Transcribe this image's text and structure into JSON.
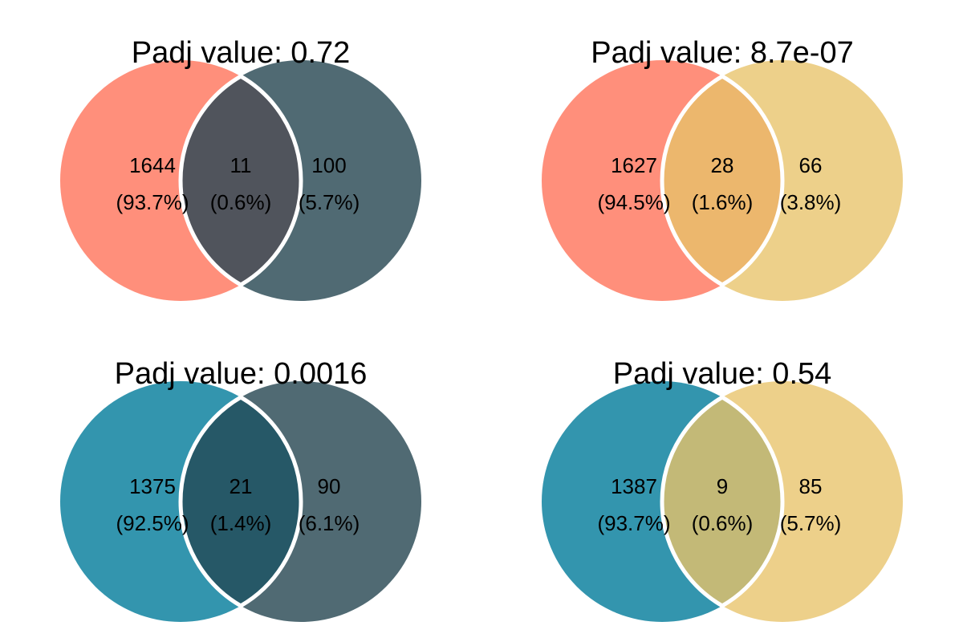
{
  "venns": [
    {
      "title": "Padj value: 0.72",
      "colors": {
        "left": "#FF8F7B",
        "right": "#506A73",
        "overlap": "#50545C"
      },
      "regions": [
        {
          "count": "1644",
          "percent": "(93.7%)"
        },
        {
          "count": "11",
          "percent": "(0.6%)"
        },
        {
          "count": "100",
          "percent": "(5.7%)"
        }
      ]
    },
    {
      "title": "Padj value: 8.7e-07",
      "colors": {
        "left": "#FF8F7B",
        "right": "#EDD08A",
        "overlap": "#ECB76D"
      },
      "regions": [
        {
          "count": "1627",
          "percent": "(94.5%)"
        },
        {
          "count": "28",
          "percent": "(1.6%)"
        },
        {
          "count": "66",
          "percent": "(3.8%)"
        }
      ]
    },
    {
      "title": "Padj value: 0.0016",
      "colors": {
        "left": "#3395AE",
        "right": "#506A73",
        "overlap": "#265867"
      },
      "regions": [
        {
          "count": "1375",
          "percent": "(92.5%)"
        },
        {
          "count": "21",
          "percent": "(1.4%)"
        },
        {
          "count": "90",
          "percent": "(6.1%)"
        }
      ]
    },
    {
      "title": "Padj value: 0.54",
      "colors": {
        "left": "#3395AE",
        "right": "#EDD08A",
        "overlap": "#C3B977"
      },
      "regions": [
        {
          "count": "1387",
          "percent": "(93.7%)"
        },
        {
          "count": "9",
          "percent": "(0.6%)"
        },
        {
          "count": "85",
          "percent": "(5.7%)"
        }
      ]
    }
  ]
}
